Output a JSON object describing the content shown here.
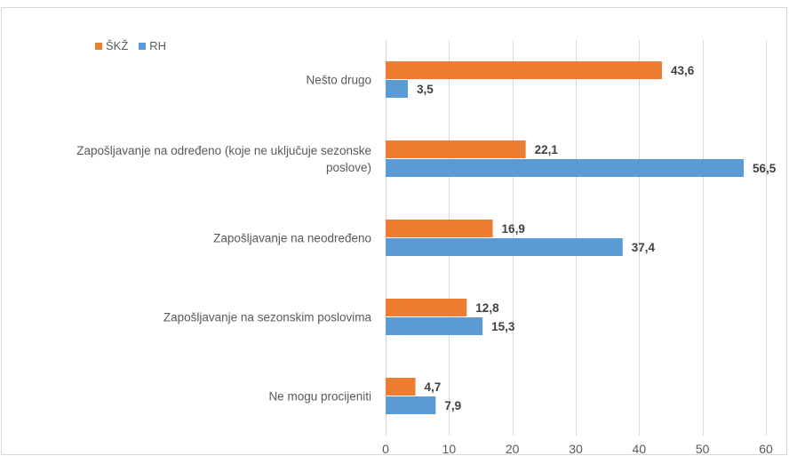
{
  "chart_data": {
    "type": "bar",
    "orientation": "horizontal",
    "categories": [
      "Nešto drugo",
      "Zapošljavanje na određeno (koje ne uključuje sezonske poslove)",
      "Zapošljavanje na neodređeno",
      "Zapošljavanje na sezonskim poslovima",
      "Ne mogu procijeniti"
    ],
    "category_lines": [
      [
        "Nešto drugo"
      ],
      [
        "Zapošljavanje na određeno (koje ne uključuje sezonske",
        "poslove)"
      ],
      [
        "Zapošljavanje na neodređeno"
      ],
      [
        "Zapošljavanje na sezonskim poslovima"
      ],
      [
        "Ne mogu procijeniti"
      ]
    ],
    "series": [
      {
        "name": "ŠKŽ",
        "color": "#ed7d31",
        "values": [
          43.6,
          22.1,
          16.9,
          12.8,
          4.7
        ],
        "labels": [
          "43,6",
          "22,1",
          "16,9",
          "12,8",
          "4,7"
        ]
      },
      {
        "name": "RH",
        "color": "#5b9bd5",
        "values": [
          3.5,
          56.5,
          37.4,
          15.3,
          7.9
        ],
        "labels": [
          "3,5",
          "56,5",
          "37,4",
          "15,3",
          "7,9"
        ]
      }
    ],
    "xlim": [
      0,
      60
    ],
    "xticks": [
      0,
      10,
      20,
      30,
      40,
      50,
      60
    ],
    "grid": true,
    "legend_position": "top-left"
  }
}
